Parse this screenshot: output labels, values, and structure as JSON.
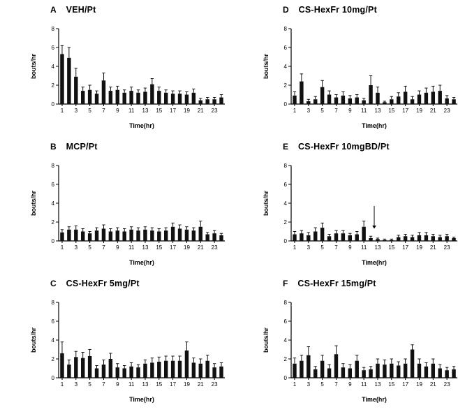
{
  "figure": {
    "background": "#ffffff",
    "bar_color": "#111111",
    "axis_color": "#000000"
  },
  "chart_data": [
    {
      "type": "bar",
      "panel_letter": "A",
      "title": "VEH/Pt",
      "xlabel": "Time(hr)",
      "ylabel": "bouts/hr",
      "ylim": [
        0,
        8
      ],
      "yticks": [
        0,
        2,
        4,
        6,
        8
      ],
      "x": [
        1,
        2,
        3,
        4,
        5,
        6,
        7,
        8,
        9,
        10,
        11,
        12,
        13,
        14,
        15,
        16,
        17,
        18,
        19,
        20,
        21,
        22,
        23,
        24
      ],
      "values": [
        5.3,
        4.9,
        2.9,
        1.4,
        1.5,
        1.1,
        2.5,
        1.4,
        1.5,
        1.2,
        1.4,
        1.2,
        1.3,
        2.1,
        1.4,
        1.2,
        1.1,
        1.1,
        1.0,
        1.2,
        0.4,
        0.5,
        0.5,
        0.7
      ],
      "errors": [
        0.9,
        1.1,
        0.9,
        0.4,
        0.5,
        0.3,
        0.8,
        0.4,
        0.4,
        0.3,
        0.4,
        0.3,
        0.4,
        0.6,
        0.4,
        0.3,
        0.3,
        0.3,
        0.3,
        0.4,
        0.2,
        0.2,
        0.2,
        0.3
      ],
      "annotations": []
    },
    {
      "type": "bar",
      "panel_letter": "B",
      "title": "MCP/Pt",
      "xlabel": "Time(hr)",
      "ylabel": "bouts/hr",
      "ylim": [
        0,
        8
      ],
      "yticks": [
        0,
        2,
        4,
        6,
        8
      ],
      "x": [
        1,
        2,
        3,
        4,
        5,
        6,
        7,
        8,
        9,
        10,
        11,
        12,
        13,
        14,
        15,
        16,
        17,
        18,
        19,
        20,
        21,
        22,
        23,
        24
      ],
      "values": [
        0.9,
        1.2,
        1.2,
        1.0,
        0.8,
        1.1,
        1.3,
        1.0,
        1.1,
        1.0,
        1.2,
        1.1,
        1.2,
        1.1,
        1.0,
        1.1,
        1.5,
        1.3,
        1.2,
        1.1,
        1.5,
        0.7,
        0.8,
        0.6
      ],
      "errors": [
        0.3,
        0.3,
        0.4,
        0.3,
        0.2,
        0.3,
        0.4,
        0.3,
        0.3,
        0.3,
        0.3,
        0.3,
        0.3,
        0.3,
        0.3,
        0.3,
        0.4,
        0.4,
        0.3,
        0.3,
        0.6,
        0.2,
        0.3,
        0.2
      ],
      "annotations": []
    },
    {
      "type": "bar",
      "panel_letter": "C",
      "title": "CS-HexFr 5mg/Pt",
      "xlabel": "Time(hr)",
      "ylabel": "bouts/hr",
      "ylim": [
        0,
        8
      ],
      "yticks": [
        0,
        2,
        4,
        6,
        8
      ],
      "x": [
        1,
        2,
        3,
        4,
        5,
        6,
        7,
        8,
        9,
        10,
        11,
        12,
        13,
        14,
        15,
        16,
        17,
        18,
        19,
        20,
        21,
        22,
        23,
        24
      ],
      "values": [
        2.6,
        1.4,
        2.2,
        2.1,
        2.3,
        1.0,
        1.4,
        2.0,
        1.1,
        1.0,
        1.2,
        1.1,
        1.5,
        1.6,
        1.7,
        1.8,
        1.8,
        1.8,
        2.9,
        1.6,
        1.5,
        1.8,
        1.1,
        1.2
      ],
      "errors": [
        1.2,
        0.5,
        0.6,
        0.6,
        0.7,
        0.3,
        0.5,
        0.6,
        0.4,
        0.3,
        0.4,
        0.3,
        0.4,
        0.5,
        0.5,
        0.5,
        0.5,
        0.5,
        0.9,
        0.5,
        0.5,
        0.6,
        0.4,
        0.4
      ],
      "annotations": []
    },
    {
      "type": "bar",
      "panel_letter": "D",
      "title": "CS-HexFr 10mg/Pt",
      "xlabel": "Time(hr)",
      "ylabel": "bouts/hr",
      "ylim": [
        0,
        8
      ],
      "yticks": [
        0,
        2,
        4,
        6,
        8
      ],
      "x": [
        1,
        2,
        3,
        4,
        5,
        6,
        7,
        8,
        9,
        10,
        11,
        12,
        13,
        14,
        15,
        16,
        17,
        18,
        19,
        20,
        21,
        22,
        23,
        24
      ],
      "values": [
        0.9,
        2.4,
        0.3,
        0.5,
        1.8,
        1.0,
        0.7,
        0.9,
        0.6,
        0.7,
        0.4,
        2.0,
        1.2,
        0.2,
        0.5,
        0.8,
        1.3,
        0.5,
        1.0,
        1.2,
        1.3,
        1.4,
        0.6,
        0.5
      ],
      "errors": [
        0.4,
        0.8,
        0.2,
        0.3,
        0.7,
        0.4,
        0.3,
        0.4,
        0.3,
        0.3,
        0.2,
        1.0,
        0.6,
        0.1,
        0.3,
        0.4,
        0.6,
        0.3,
        0.4,
        0.5,
        0.6,
        0.6,
        0.3,
        0.2
      ],
      "annotations": []
    },
    {
      "type": "bar",
      "panel_letter": "E",
      "title": "CS-HexFr 10mgBD/Pt",
      "xlabel": "Time(hr)",
      "ylabel": "bouts/hr",
      "ylim": [
        0,
        8
      ],
      "yticks": [
        0,
        2,
        4,
        6,
        8
      ],
      "x": [
        1,
        2,
        3,
        4,
        5,
        6,
        7,
        8,
        9,
        10,
        11,
        12,
        13,
        14,
        15,
        16,
        17,
        18,
        19,
        20,
        21,
        22,
        23,
        24
      ],
      "values": [
        0.7,
        0.8,
        0.6,
        1.0,
        1.4,
        0.5,
        0.8,
        0.8,
        0.6,
        0.7,
        1.5,
        0.3,
        0.2,
        0.1,
        0.1,
        0.4,
        0.5,
        0.4,
        0.6,
        0.6,
        0.5,
        0.4,
        0.5,
        0.3
      ],
      "errors": [
        0.3,
        0.3,
        0.3,
        0.4,
        0.5,
        0.2,
        0.3,
        0.3,
        0.2,
        0.3,
        0.6,
        0.2,
        0.1,
        0.1,
        0.1,
        0.2,
        0.2,
        0.2,
        0.3,
        0.3,
        0.2,
        0.2,
        0.2,
        0.1
      ],
      "annotations": [
        {
          "type": "down-arrow",
          "x_hour": 12.5,
          "y_from": 3.7,
          "y_to": 1.3
        }
      ]
    },
    {
      "type": "bar",
      "panel_letter": "F",
      "title": "CS-HexFr 15mg/Pt",
      "xlabel": "Time(hr)",
      "ylabel": "bouts/hr",
      "ylim": [
        0,
        8
      ],
      "yticks": [
        0,
        2,
        4,
        6,
        8
      ],
      "x": [
        1,
        2,
        3,
        4,
        5,
        6,
        7,
        8,
        9,
        10,
        11,
        12,
        13,
        14,
        15,
        16,
        17,
        18,
        19,
        20,
        21,
        22,
        23,
        24
      ],
      "values": [
        1.5,
        1.8,
        2.4,
        0.9,
        1.8,
        1.0,
        2.5,
        1.1,
        1.0,
        1.8,
        0.8,
        0.9,
        1.5,
        1.4,
        1.5,
        1.3,
        1.5,
        3.0,
        1.5,
        1.2,
        1.5,
        1.0,
        0.8,
        0.9
      ],
      "errors": [
        0.6,
        0.6,
        0.9,
        0.3,
        0.6,
        0.4,
        0.9,
        0.4,
        0.4,
        0.6,
        0.3,
        0.3,
        0.5,
        0.5,
        0.5,
        0.4,
        0.5,
        0.5,
        0.5,
        0.4,
        0.5,
        0.4,
        0.3,
        0.3
      ],
      "annotations": []
    }
  ]
}
